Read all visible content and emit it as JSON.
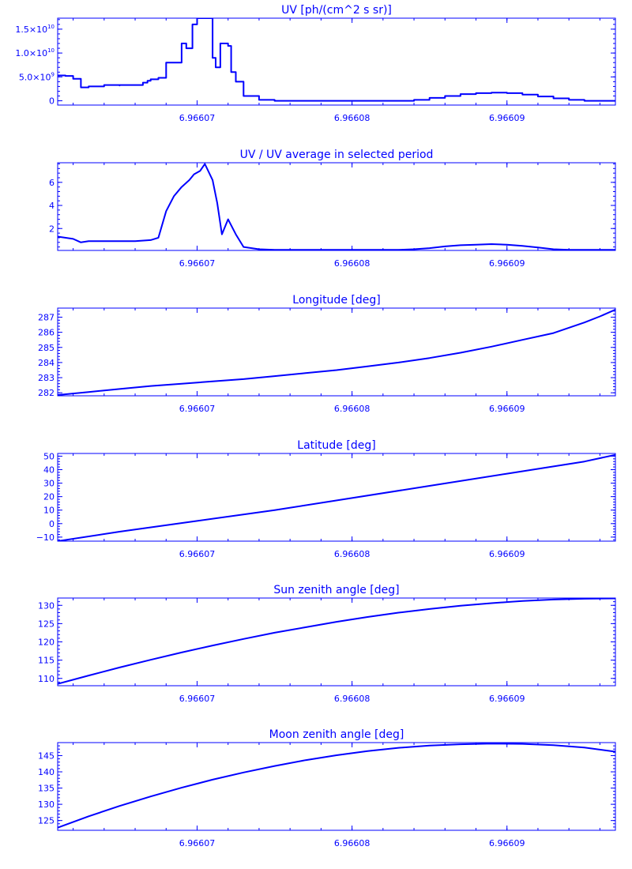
{
  "chart_data": [
    {
      "type": "line",
      "title": "UV [ph/(cm^2 s sr)]",
      "xlim": [
        6.966061,
        6.966097
      ],
      "ylim": [
        -900000000,
        17300000000
      ],
      "x_ticks": [
        6.96607,
        6.96608,
        6.96609
      ],
      "x_tick_labels": [
        "6.96607",
        "6.96608",
        "6.96609"
      ],
      "y_ticks": [
        0,
        5000000000,
        10000000000,
        15000000000
      ],
      "y_tick_labels": [
        {
          "mantissa": "0",
          "exponent": ""
        },
        {
          "mantissa": "5.0×10",
          "exponent": "9"
        },
        {
          "mantissa": "1.0×10",
          "exponent": "10"
        },
        {
          "mantissa": "1.5×10",
          "exponent": "10"
        }
      ],
      "y_minor_step": 1000000000,
      "series": [
        {
          "step": true,
          "color": "#0000ff",
          "x": [
            6.966061,
            6.9660615,
            6.966062,
            6.9660625,
            6.966063,
            6.966064,
            6.966065,
            6.966065,
            6.966066,
            6.9660665,
            6.9660668,
            6.966067,
            6.9660675,
            6.966068,
            6.966069,
            6.9660693,
            6.9660697,
            6.96607,
            6.9660703,
            6.9660706,
            6.966071,
            6.966071,
            6.9660712,
            6.9660715,
            6.966072,
            6.9660722,
            6.9660725,
            6.966073,
            6.966073,
            6.9660733,
            6.966074,
            6.966075,
            6.966076,
            6.966077,
            6.966078,
            6.966079,
            6.96608,
            6.966081,
            6.966082,
            6.966083,
            6.966084,
            6.966085,
            6.966086,
            6.966087,
            6.966088,
            6.966089,
            6.96609,
            6.966091,
            6.966092,
            6.966093,
            6.966094,
            6.966095,
            6.966096,
            6.966097
          ],
          "y": [
            5300000000,
            5200000000,
            4600000000,
            2800000000,
            3000000000,
            3300000000,
            3200000000,
            3300000000,
            3300000000,
            3800000000,
            4200000000,
            4500000000,
            4800000000,
            8000000000,
            12000000000,
            11000000000,
            16000000000,
            17300000000,
            17300000000,
            17300000000,
            17300000000,
            9000000000,
            7000000000,
            12000000000,
            11500000000,
            6000000000,
            4000000000,
            2000000000,
            1000000000,
            1000000000,
            200000000,
            0,
            0,
            0,
            0,
            0,
            0,
            0,
            0,
            0,
            200000000,
            600000000,
            1000000000,
            1400000000,
            1600000000,
            1700000000,
            1600000000,
            1300000000,
            900000000,
            500000000,
            200000000,
            0,
            0,
            0
          ]
        }
      ]
    },
    {
      "type": "line",
      "title": "UV / UV average in selected period",
      "xlim": [
        6.966061,
        6.966097
      ],
      "ylim": [
        0.1,
        7.7
      ],
      "x_ticks": [
        6.96607,
        6.96608,
        6.96609
      ],
      "x_tick_labels": [
        "6.96607",
        "6.96608",
        "6.96609"
      ],
      "y_ticks": [
        2,
        4,
        6
      ],
      "y_tick_labels": [
        "2",
        "4",
        "6"
      ],
      "y_minor_step": 0.4,
      "series": [
        {
          "step": false,
          "color": "#0000ff",
          "x": [
            6.966061,
            6.966062,
            6.9660625,
            6.966063,
            6.966064,
            6.966065,
            6.966066,
            6.966067,
            6.9660675,
            6.966068,
            6.9660685,
            6.966069,
            6.9660695,
            6.9660698,
            6.9660702,
            6.9660705,
            6.966071,
            6.9660713,
            6.9660716,
            6.966072,
            6.9660725,
            6.966073,
            6.966074,
            6.966075,
            6.966076,
            6.966077,
            6.966078,
            6.966079,
            6.96608,
            6.966081,
            6.966082,
            6.966083,
            6.966084,
            6.966085,
            6.966086,
            6.966087,
            6.966088,
            6.966089,
            6.96609,
            6.966091,
            6.966092,
            6.966093,
            6.966094,
            6.966095,
            6.966096,
            6.966097
          ],
          "y": [
            1.3,
            1.1,
            0.8,
            0.9,
            0.9,
            0.9,
            0.9,
            1.0,
            1.2,
            3.5,
            4.8,
            5.6,
            6.2,
            6.7,
            7.0,
            7.6,
            6.2,
            4.2,
            1.5,
            2.8,
            1.5,
            0.4,
            0.2,
            0.15,
            0.15,
            0.15,
            0.15,
            0.15,
            0.15,
            0.15,
            0.15,
            0.15,
            0.2,
            0.3,
            0.45,
            0.55,
            0.6,
            0.65,
            0.6,
            0.5,
            0.35,
            0.2,
            0.15,
            0.15,
            0.15,
            0.15
          ]
        }
      ]
    },
    {
      "type": "line",
      "title": "Longitude [deg]",
      "xlim": [
        6.966061,
        6.966097
      ],
      "ylim": [
        281.8,
        287.6
      ],
      "x_ticks": [
        6.96607,
        6.96608,
        6.96609
      ],
      "x_tick_labels": [
        "6.96607",
        "6.96608",
        "6.96609"
      ],
      "y_ticks": [
        282,
        283,
        284,
        285,
        286,
        287
      ],
      "y_tick_labels": [
        "282",
        "283",
        "284",
        "285",
        "286",
        "287"
      ],
      "y_minor_step": 0.2,
      "series": [
        {
          "step": false,
          "color": "#0000ff",
          "x": [
            6.966061,
            6.966063,
            6.966065,
            6.966067,
            6.966069,
            6.966071,
            6.966073,
            6.966075,
            6.966077,
            6.966079,
            6.966081,
            6.966083,
            6.966085,
            6.966087,
            6.966089,
            6.966091,
            6.966093,
            6.966095,
            6.966096,
            6.966097
          ],
          "y": [
            281.85,
            282.05,
            282.25,
            282.45,
            282.6,
            282.75,
            282.9,
            283.1,
            283.3,
            283.5,
            283.75,
            284.0,
            284.3,
            284.65,
            285.05,
            285.5,
            285.95,
            286.65,
            287.05,
            287.5
          ]
        }
      ]
    },
    {
      "type": "line",
      "title": "Latitude [deg]",
      "xlim": [
        6.966061,
        6.966097
      ],
      "ylim": [
        -13,
        52
      ],
      "x_ticks": [
        6.96607,
        6.96608,
        6.96609
      ],
      "x_tick_labels": [
        "6.96607",
        "6.96608",
        "6.96609"
      ],
      "y_ticks": [
        -10,
        0,
        10,
        20,
        30,
        40,
        50
      ],
      "y_tick_labels": [
        "−10",
        "0",
        "10",
        "20",
        "30",
        "40",
        "50"
      ],
      "y_minor_step": 2,
      "series": [
        {
          "step": false,
          "color": "#0000ff",
          "x": [
            6.966061,
            6.966065,
            6.96607,
            6.966075,
            6.96608,
            6.966085,
            6.96609,
            6.966095,
            6.966097
          ],
          "y": [
            -13,
            -6,
            2,
            10,
            19,
            28,
            37,
            46,
            51
          ]
        }
      ]
    },
    {
      "type": "line",
      "title": "Sun zenith angle [deg]",
      "xlim": [
        6.966061,
        6.966097
      ],
      "ylim": [
        108,
        132
      ],
      "x_ticks": [
        6.96607,
        6.96608,
        6.96609
      ],
      "x_tick_labels": [
        "6.96607",
        "6.96608",
        "6.96609"
      ],
      "y_ticks": [
        110,
        115,
        120,
        125,
        130
      ],
      "y_tick_labels": [
        "110",
        "115",
        "120",
        "125",
        "130"
      ],
      "y_minor_step": 1,
      "series": [
        {
          "step": false,
          "color": "#0000ff",
          "x": [
            6.966061,
            6.966063,
            6.966065,
            6.966067,
            6.966069,
            6.966071,
            6.966073,
            6.966075,
            6.966077,
            6.966079,
            6.966081,
            6.966083,
            6.966085,
            6.966087,
            6.966089,
            6.966091,
            6.966093,
            6.966095,
            6.966097
          ],
          "y": [
            108.5,
            110.8,
            113.0,
            115.1,
            117.1,
            119.0,
            120.8,
            122.5,
            124.0,
            125.5,
            126.8,
            128.0,
            129.0,
            129.9,
            130.6,
            131.2,
            131.6,
            131.8,
            131.9
          ]
        }
      ]
    },
    {
      "type": "line",
      "title": "Moon zenith angle [deg]",
      "xlim": [
        6.966061,
        6.966097
      ],
      "ylim": [
        122,
        149
      ],
      "x_ticks": [
        6.96607,
        6.96608,
        6.96609
      ],
      "x_tick_labels": [
        "6.96607",
        "6.96608",
        "6.96609"
      ],
      "y_ticks": [
        125,
        130,
        135,
        140,
        145
      ],
      "y_tick_labels": [
        "125",
        "130",
        "135",
        "140",
        "145"
      ],
      "y_minor_step": 1,
      "series": [
        {
          "step": false,
          "color": "#0000ff",
          "x": [
            6.966061,
            6.966063,
            6.966065,
            6.966067,
            6.966069,
            6.966071,
            6.966073,
            6.966075,
            6.966077,
            6.966079,
            6.966081,
            6.966083,
            6.966085,
            6.966087,
            6.966089,
            6.966091,
            6.966093,
            6.966095,
            6.966097
          ],
          "y": [
            122.8,
            126.3,
            129.5,
            132.4,
            135.1,
            137.6,
            139.8,
            141.8,
            143.6,
            145.1,
            146.4,
            147.4,
            148.1,
            148.5,
            148.7,
            148.6,
            148.2,
            147.5,
            146.2
          ]
        }
      ]
    }
  ]
}
